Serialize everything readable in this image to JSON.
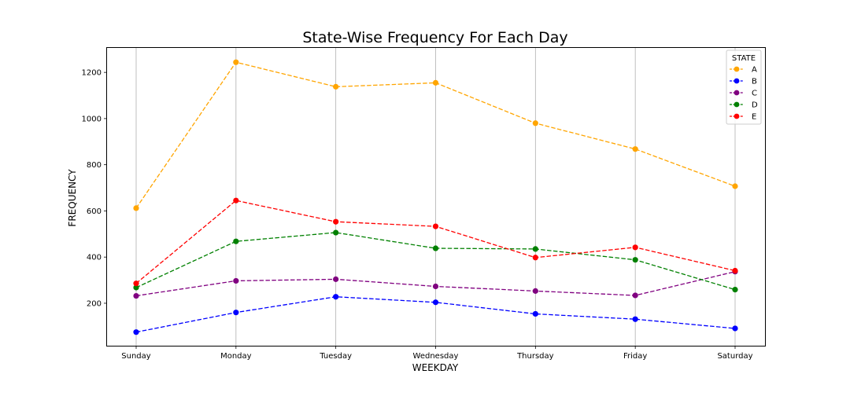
{
  "chart_data": {
    "type": "line",
    "title": "State-Wise Frequency For Each Day",
    "xlabel": "WEEKDAY",
    "ylabel": "FREQUENCY",
    "categories": [
      "Sunday",
      "Monday",
      "Tuesday",
      "Wednesday",
      "Thursday",
      "Friday",
      "Saturday"
    ],
    "yticks": [
      200,
      400,
      600,
      800,
      1000,
      1200
    ],
    "ylim": [
      16,
      1306
    ],
    "grid": "vertical",
    "line_style": "dashed",
    "marker": "circle",
    "legend": {
      "title": "STATE",
      "placement": "top-right"
    },
    "series": [
      {
        "name": "A",
        "color": "#ffa500",
        "values": [
          612,
          1244,
          1138,
          1155,
          980,
          868,
          707
        ]
      },
      {
        "name": "B",
        "color": "#0000ff",
        "values": [
          75,
          160,
          228,
          204,
          154,
          131,
          91
        ]
      },
      {
        "name": "C",
        "color": "#800080",
        "values": [
          232,
          297,
          304,
          273,
          253,
          234,
          337
        ]
      },
      {
        "name": "D",
        "color": "#008000",
        "values": [
          268,
          468,
          506,
          438,
          435,
          388,
          259
        ]
      },
      {
        "name": "E",
        "color": "#ff0000",
        "values": [
          286,
          645,
          553,
          533,
          398,
          442,
          341
        ]
      }
    ]
  }
}
